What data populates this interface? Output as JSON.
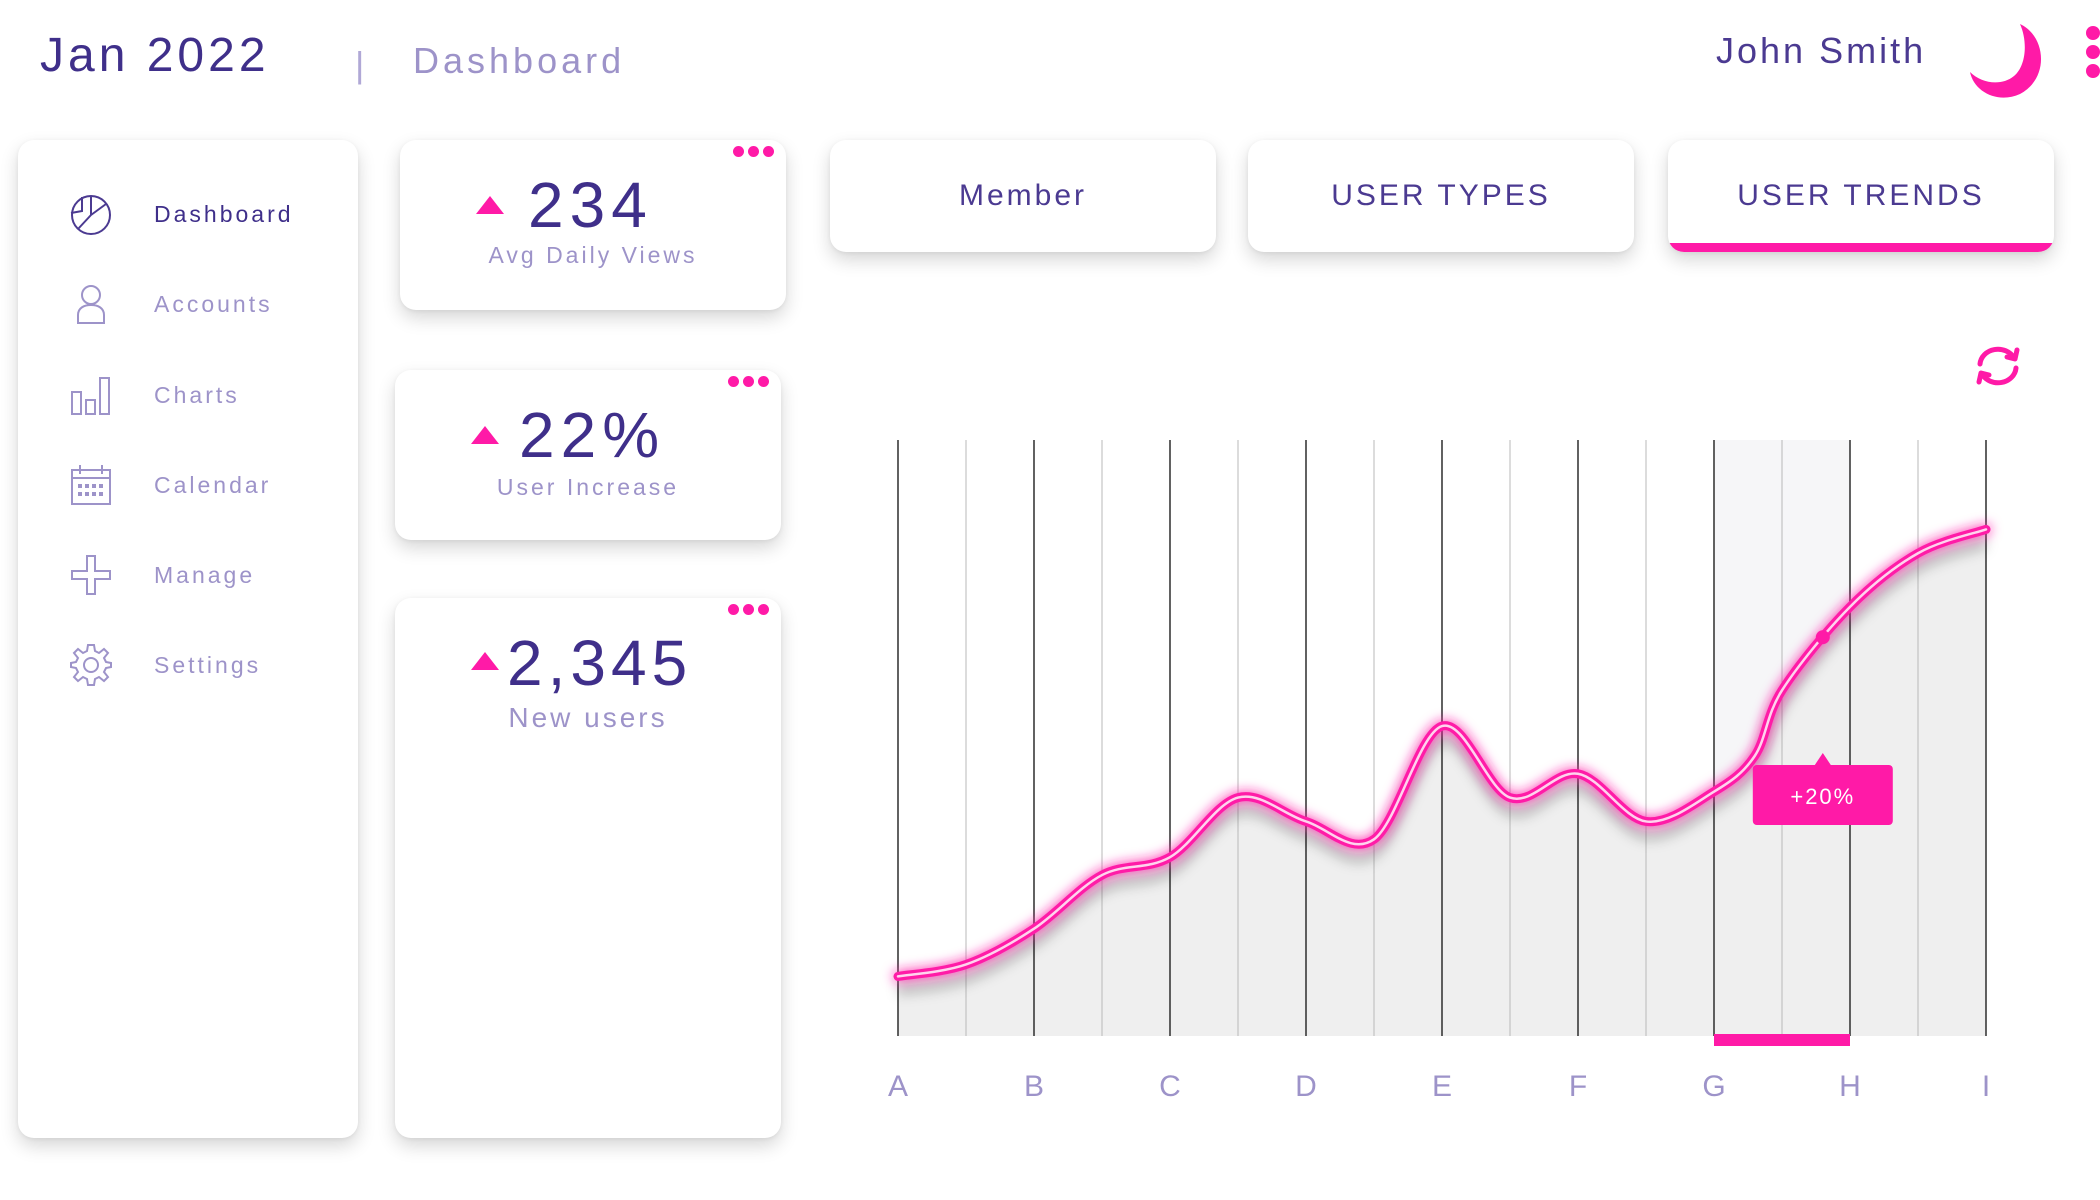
{
  "header": {
    "date": "Jan 2022",
    "separator": "|",
    "page": "Dashboard",
    "user_name": "John Smith",
    "logo_icon": "crescent-logo",
    "menu_icon": "kebab-menu-icon"
  },
  "sidebar": {
    "items": [
      {
        "label": "Dashboard",
        "icon": "pie-chart-icon",
        "active": true
      },
      {
        "label": "Accounts",
        "icon": "user-icon",
        "active": false
      },
      {
        "label": "Charts",
        "icon": "bar-chart-icon",
        "active": false
      },
      {
        "label": "Calendar",
        "icon": "calendar-icon",
        "active": false
      },
      {
        "label": "Manage",
        "icon": "plus-icon",
        "active": false
      },
      {
        "label": "Settings",
        "icon": "gear-icon",
        "active": false
      }
    ]
  },
  "stats": [
    {
      "value": "234",
      "label": "Avg Daily Views",
      "trend": "up"
    },
    {
      "value": "22%",
      "label": "User Increase",
      "trend": "up"
    },
    {
      "value": "2,345",
      "label": "New users",
      "trend": "up"
    }
  ],
  "tabs": [
    {
      "label": "Member",
      "active": false
    },
    {
      "label": "USER TYPES",
      "active": false
    },
    {
      "label": "USER TRENDS",
      "active": true
    }
  ],
  "refresh_icon": "refresh-icon",
  "colors": {
    "accent": "#ff1aa7",
    "primary_text": "#3f2f8a",
    "muted_text": "#9d93c9",
    "area_fill": "#efefef"
  },
  "chart_data": {
    "type": "line",
    "categories": [
      "A",
      "B",
      "C",
      "D",
      "E",
      "F",
      "G",
      "H",
      "I"
    ],
    "x": [
      0,
      0.5,
      1,
      1.5,
      2,
      2.5,
      3,
      3.5,
      4,
      4.5,
      5,
      5.5,
      6,
      6.3,
      6.5,
      7,
      7.5,
      8
    ],
    "y": [
      10,
      12,
      18,
      27,
      30,
      40,
      36,
      33,
      52,
      40,
      44,
      36,
      41,
      47,
      58,
      72,
      81,
      85
    ],
    "ylim": [
      0,
      100
    ],
    "grid": true,
    "highlight_range": [
      "G",
      "H"
    ],
    "annotation": {
      "x": 6.8,
      "label": "+20%"
    }
  }
}
